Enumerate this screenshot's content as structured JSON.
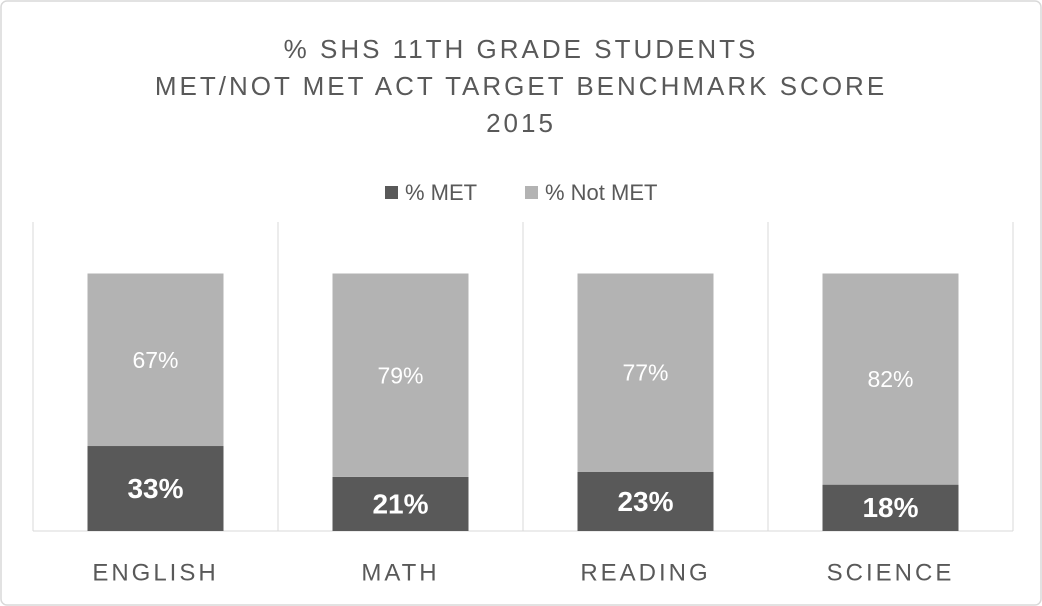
{
  "chart_data": {
    "type": "stacked_bar",
    "title": [
      "% SHS 11TH GRADE STUDENTS",
      "MET/NOT MET ACT TARGET BENCHMARK SCORE",
      "2015"
    ],
    "categories": [
      "ENGLISH",
      "MATH",
      "READING",
      "SCIENCE"
    ],
    "series": [
      {
        "name": "% MET",
        "color": "#595959",
        "values": [
          33,
          21,
          23,
          18
        ],
        "value_labels": [
          "33%",
          "21%",
          "23%",
          "18%"
        ]
      },
      {
        "name": "% Not MET",
        "color": "#b3b3b3",
        "values": [
          67,
          79,
          77,
          82
        ],
        "value_labels": [
          "67%",
          "79%",
          "77%",
          "82%"
        ]
      }
    ],
    "ylim": [
      0,
      120
    ],
    "legend": "top"
  }
}
